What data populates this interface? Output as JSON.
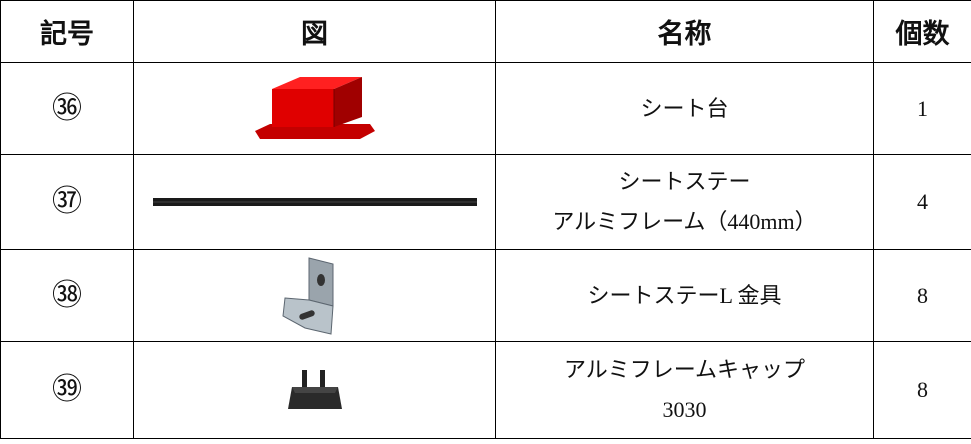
{
  "table": {
    "header": [
      "記号",
      "図",
      "名称",
      "個数"
    ],
    "rows": [
      {
        "symbol": "㊱",
        "name": [
          "シート台"
        ],
        "count": 1
      },
      {
        "symbol": "㊲",
        "name": [
          "シートステー",
          "アルミフレーム（440mm）"
        ],
        "count": 4
      },
      {
        "symbol": "㊳",
        "name": [
          "シートステーL 金具"
        ],
        "count": 8
      },
      {
        "symbol": "㊴",
        "name": [
          "アルミフレームキャップ",
          "3030"
        ],
        "count": 8
      }
    ]
  }
}
